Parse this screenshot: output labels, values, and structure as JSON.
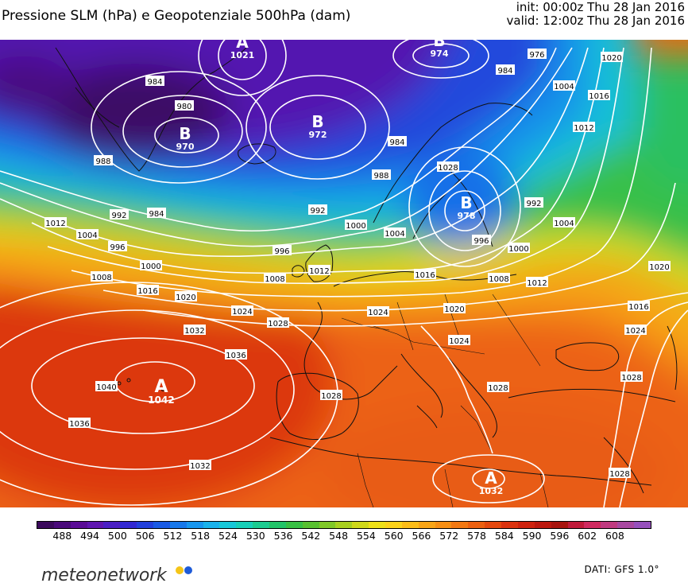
{
  "header": {
    "title": "Pressione SLM (hPa) e Geopotenziale 500hPa (dam)",
    "init": "init: 00:00z Thu 28 Jan 2016",
    "valid": "valid: 12:00z Thu 28 Jan 2016"
  },
  "pressure_centers": [
    {
      "letter": "A",
      "value": "1021"
    },
    {
      "letter": "B",
      "value": "974"
    },
    {
      "letter": "B",
      "value": "970"
    },
    {
      "letter": "B",
      "value": "972"
    },
    {
      "letter": "B",
      "value": "978"
    },
    {
      "letter": "A",
      "value": "1042"
    },
    {
      "letter": "A",
      "value": "1032"
    }
  ],
  "isobar_labels": [
    "984",
    "980",
    "988",
    "992",
    "984",
    "1012",
    "1004",
    "996",
    "988",
    "984",
    "992",
    "1000",
    "1004",
    "996",
    "1008",
    "1016",
    "1020",
    "1024",
    "1028",
    "1032",
    "1036",
    "1040",
    "1036",
    "1032",
    "1028",
    "1000",
    "1008",
    "1012",
    "1016",
    "1020",
    "1024",
    "1028",
    "1028",
    "1008",
    "1012",
    "1016",
    "1024",
    "1028",
    "1000",
    "992",
    "1004",
    "984",
    "976",
    "1004",
    "1016",
    "1012",
    "1020",
    "1020",
    "1024",
    "1028",
    "996"
  ],
  "legend": {
    "ticks": [
      "488",
      "494",
      "500",
      "506",
      "512",
      "518",
      "524",
      "530",
      "536",
      "542",
      "548",
      "554",
      "560",
      "566",
      "572",
      "578",
      "584",
      "590",
      "596",
      "602",
      "608"
    ],
    "colors": [
      "#3b0a5c",
      "#4a0a7a",
      "#5a0c96",
      "#5f16b0",
      "#4b1fc4",
      "#3228d2",
      "#2240dc",
      "#1a5ae4",
      "#1878ea",
      "#1896ee",
      "#1ab2ea",
      "#18c8d8",
      "#18d0b8",
      "#1ccc90",
      "#22c468",
      "#38c044",
      "#58c030",
      "#80c828",
      "#a8d020",
      "#cfd81a",
      "#eee018",
      "#fcd21a",
      "#fcbc18",
      "#f8a416",
      "#f68e14",
      "#f27812",
      "#ec6010",
      "#e4480e",
      "#da320e",
      "#ce220e",
      "#bc180e",
      "#a8140e",
      "#c01a3a",
      "#d02a60",
      "#c03a80",
      "#a848a0",
      "#9650bc"
    ]
  },
  "branding": {
    "logo_text": "meteonetwork",
    "source": "DATI: GFS 1.0°",
    "dot_colors": [
      "#f5c518",
      "#1e5bd8"
    ]
  }
}
